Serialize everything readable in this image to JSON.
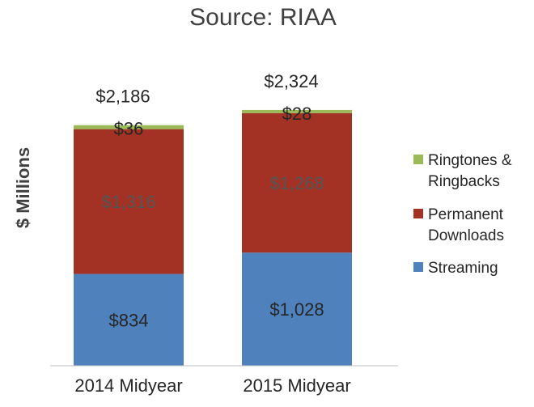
{
  "chart_data": {
    "type": "bar",
    "stacked": true,
    "title": "Source: RIAA",
    "ylabel": "$ Millions",
    "xlabel": "",
    "categories": [
      "2014 Midyear",
      "2015 Midyear"
    ],
    "series": [
      {
        "name": "Streaming",
        "color": "#4f81bd",
        "values": [
          834,
          1028
        ],
        "labels": [
          "$834",
          "$1,028"
        ]
      },
      {
        "name": "Permanent Downloads",
        "color": "#a33224",
        "values": [
          1316,
          1268
        ],
        "labels": [
          "$1,316",
          "$1,268"
        ]
      },
      {
        "name": "Ringtones & Ringbacks",
        "color": "#9bbb59",
        "values": [
          36,
          28
        ],
        "labels": [
          "$36",
          "$28"
        ]
      }
    ],
    "totals": [
      "$2,186",
      "$2,324"
    ],
    "ylim": [
      0,
      2500
    ],
    "grid": false,
    "legend": "right"
  }
}
